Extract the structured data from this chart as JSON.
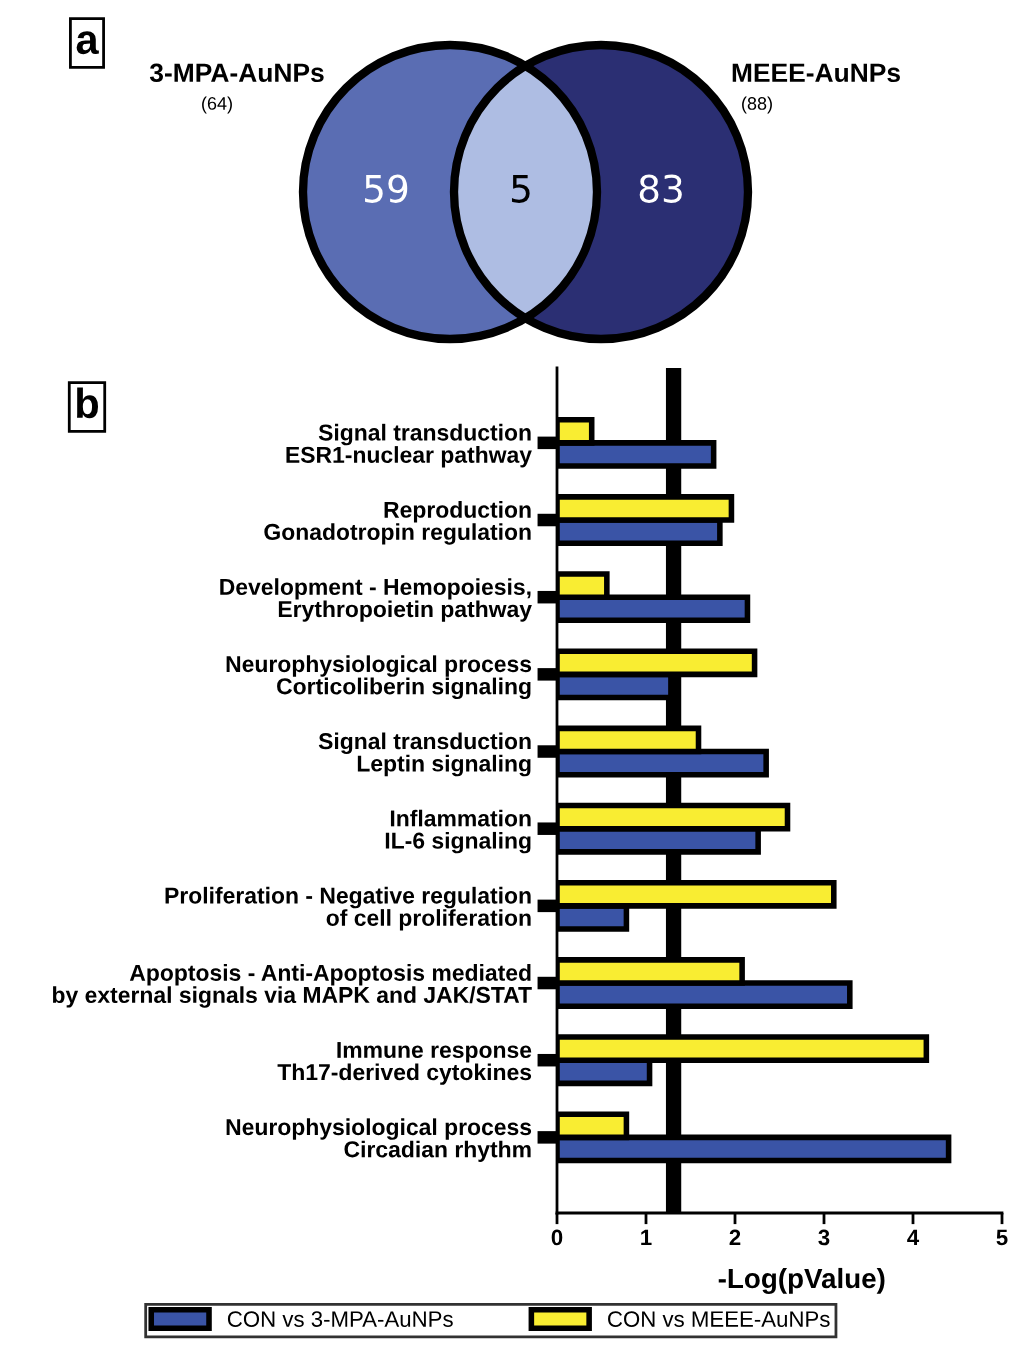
{
  "chart_data": [
    {
      "type": "other",
      "title": "a",
      "categories": [
        "3-MPA-AuNPs",
        null,
        "MEEE-AuNPs"
      ],
      "values": [
        59,
        5,
        83
      ],
      "totals": [
        "(64)",
        null,
        "(88)"
      ],
      "colors": [
        "#5a6db3",
        "#aebde3",
        "#2b2f73"
      ],
      "data_labels": true
    },
    {
      "type": "bar",
      "title": "b",
      "orientation": "horizontal",
      "categories": [
        "Signal transduction\nESR1-nuclear pathway",
        "Reproduction\nGonadotropin regulation",
        "Development - Hemopoiesis,\nErythropoietin pathway",
        "Neurophysiological process\nCorticoliberin signaling",
        "Signal transduction\nLeptin signaling",
        "Inflammation\nIL-6 signaling",
        "Proliferation - Negative regulation\nof cell proliferation",
        "Apoptosis - Anti-Apoptosis mediated\nby external signals via MAPK and JAK/STAT",
        "Immune response\nTh17-derived cytokines",
        "Neurophysiological process\nCircadian rhythm"
      ],
      "series": [
        {
          "name": "CON vs 3-MPA-AuNPs",
          "color": "#3a54a6",
          "values": [
            1.76,
            1.83,
            2.14,
            1.28,
            2.35,
            2.26,
            0.78,
            3.29,
            1.04,
            4.4
          ]
        },
        {
          "name": "CON vs MEEE-AuNPs",
          "color": "#f9ed32",
          "values": [
            0.39,
            1.96,
            0.56,
            2.22,
            1.59,
            2.59,
            3.11,
            2.08,
            4.15,
            0.78
          ]
        }
      ],
      "xlabel": "-Log(pValue)",
      "xlim": [
        0,
        5
      ],
      "xticks": [
        0,
        1,
        2,
        3,
        4,
        5
      ],
      "ref_lines": [
        {
          "axis": "x",
          "value": 1.31,
          "label": null,
          "color": "#000000"
        }
      ],
      "grid": false,
      "legend": "bottom"
    }
  ]
}
